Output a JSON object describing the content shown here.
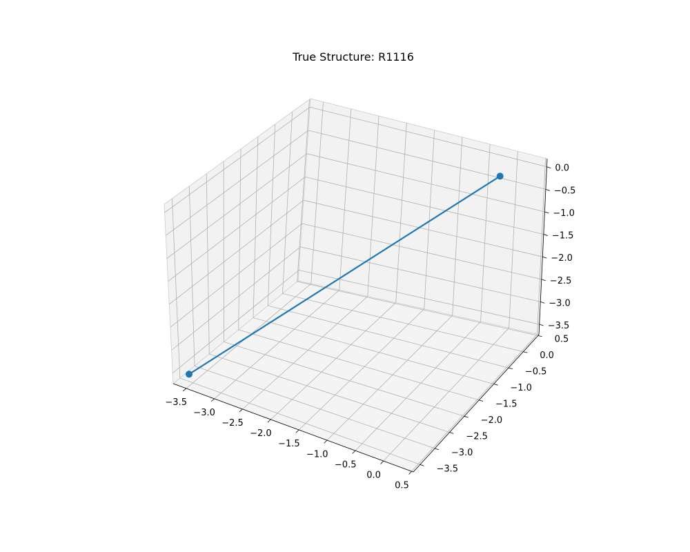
{
  "chart_data": {
    "type": "line3d",
    "title": "True Structure: R1116",
    "xlabel": "",
    "ylabel": "",
    "zlabel": "",
    "xlim": [
      -3.73,
      0.53
    ],
    "ylim": [
      -3.73,
      0.53
    ],
    "zlim": [
      -3.73,
      0.18
    ],
    "x_ticks": [
      -3.5,
      -3.0,
      -2.5,
      -2.0,
      -1.5,
      -1.0,
      -0.5,
      0.0,
      0.5
    ],
    "y_ticks": [
      -3.5,
      -3.0,
      -2.5,
      -2.0,
      -1.5,
      -1.0,
      -0.5,
      0.0,
      0.5
    ],
    "z_ticks": [
      -3.5,
      -3.0,
      -2.5,
      -2.0,
      -1.5,
      -1.0,
      -0.5,
      0.0
    ],
    "x_tick_labels": [
      "−3.5",
      "−3.0",
      "−2.5",
      "−2.0",
      "−1.5",
      "−1.0",
      "−0.5",
      "0.0",
      "0.5"
    ],
    "y_tick_labels": [
      "−3.5",
      "−3.0",
      "−2.5",
      "−2.0",
      "−1.5",
      "−1.0",
      "−0.5",
      "0.0",
      "0.5"
    ],
    "z_tick_labels": [
      "−3.5",
      "−3.0",
      "−2.5",
      "−2.0",
      "−1.5",
      "−1.0",
      "−0.5",
      "0.0"
    ],
    "grid": true,
    "series": [
      {
        "color": "#1f77b4",
        "points": [
          {
            "x": -3.54,
            "y": -3.54,
            "z": -3.54
          },
          {
            "x": 0.0,
            "y": 0.0,
            "z": 0.0
          }
        ]
      }
    ],
    "colors": {
      "series": "#1f77b4",
      "pane_left": "#f2f2f2",
      "pane_back": "#f2f2f2",
      "pane_floor": "#f4f4f4",
      "grid": "#b0b0b0"
    }
  }
}
